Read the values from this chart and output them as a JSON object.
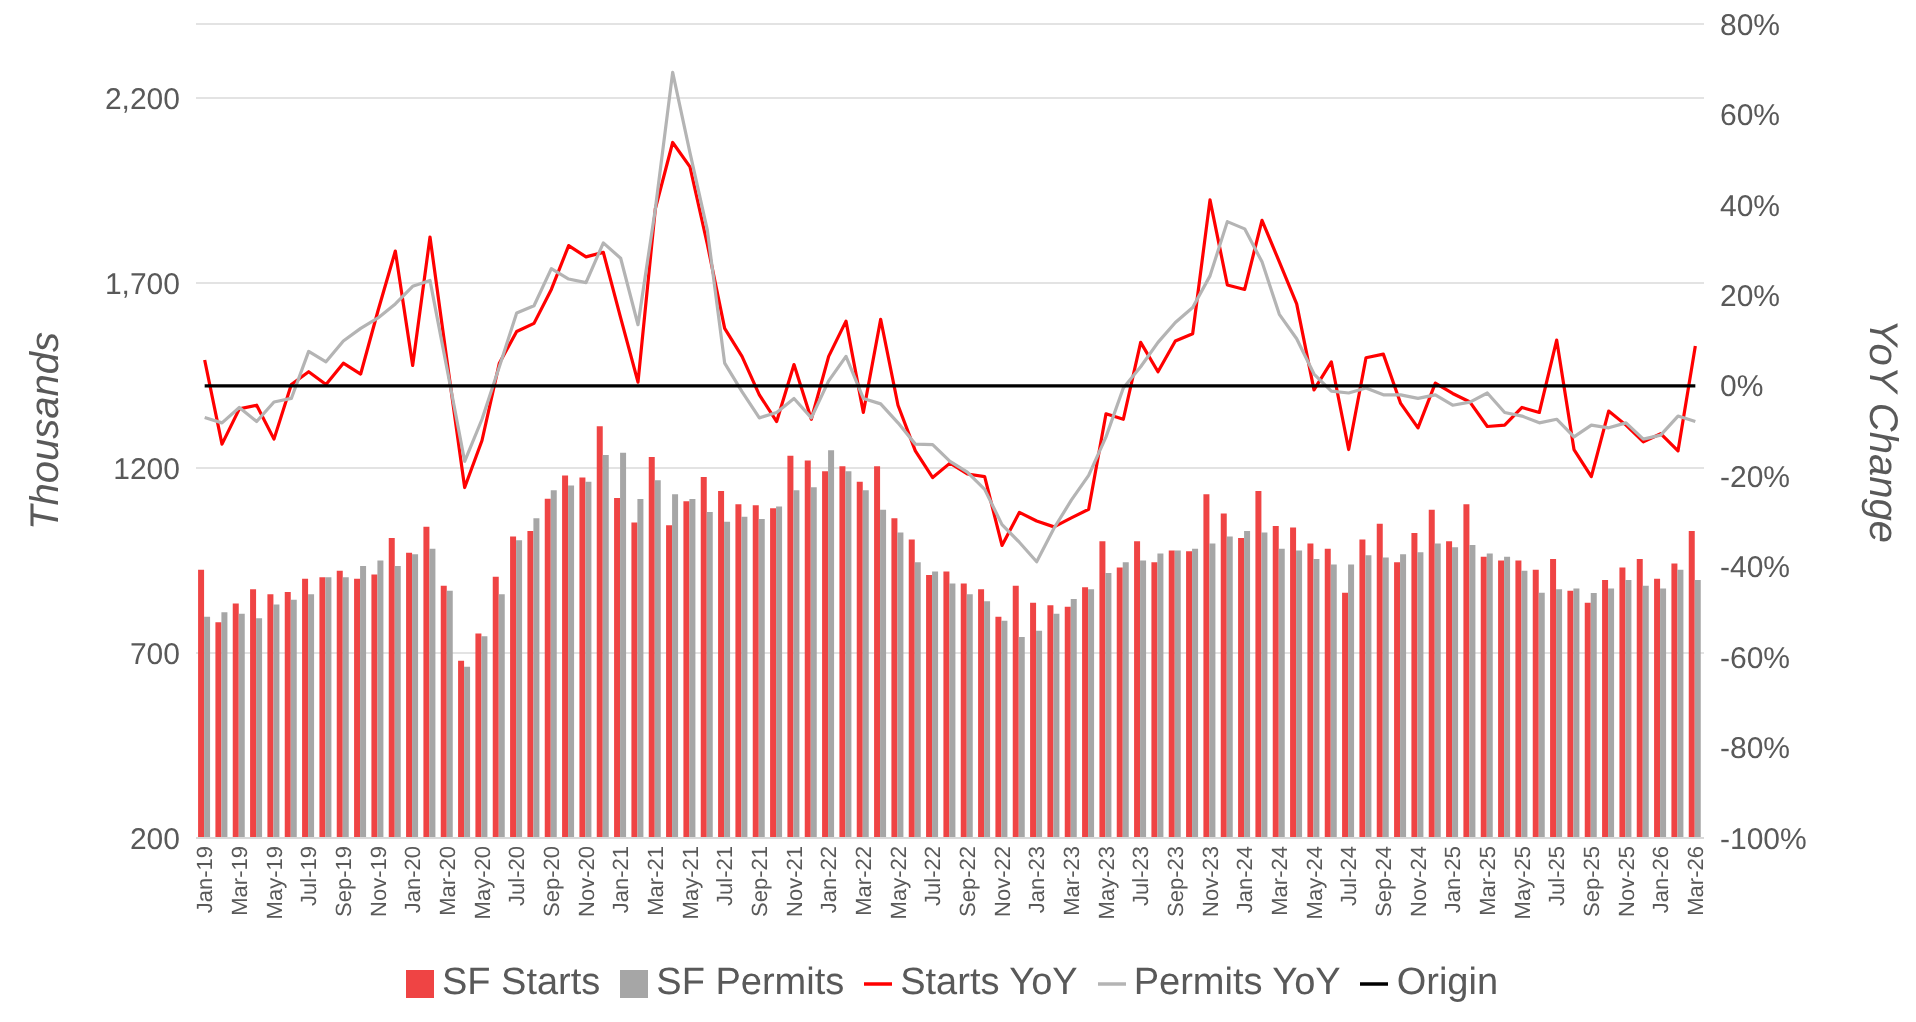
{
  "chart_data": {
    "type": "bar",
    "ylabel": "Thousands",
    "y2label": "YoY Change",
    "categories": [
      "Jan-19",
      null,
      "Mar-19",
      null,
      "May-19",
      null,
      "Jul-19",
      null,
      "Sep-19",
      null,
      "Nov-19",
      null,
      "Jan-20",
      null,
      "Mar-20",
      null,
      "May-20",
      null,
      "Jul-20",
      null,
      "Sep-20",
      null,
      "Nov-20",
      null,
      "Jan-21",
      null,
      "Mar-21",
      null,
      "May-21",
      null,
      "Jul-21",
      null,
      "Sep-21",
      null,
      "Nov-21",
      null,
      "Jan-22",
      null,
      "Mar-22",
      null,
      "May-22",
      null,
      "Jul-22",
      null,
      "Sep-22",
      null,
      "Nov-22",
      null,
      "Jan-23",
      null,
      "Mar-23",
      null,
      "May-23",
      null,
      "Jul-23",
      null,
      "Sep-23",
      null,
      "Nov-23",
      null,
      "Jan-24",
      null,
      "Mar-24",
      null,
      "May-24",
      null,
      "Jul-24",
      null,
      "Sep-24",
      null,
      "Nov-24",
      null,
      "Jan-25",
      null,
      "Mar-25",
      null,
      "May-25",
      null,
      "Jul-25",
      null,
      "Sep-25",
      null,
      "Nov-25",
      null,
      "Jan-26",
      null,
      "Mar-26"
    ],
    "series": [
      {
        "name": "SF Starts",
        "color": "#ef4444",
        "values": [
          925,
          783,
          834,
          872,
          859,
          865,
          901,
          905,
          922,
          901,
          912,
          1011,
          971,
          1041,
          882,
          679,
          753,
          906,
          1015,
          1030,
          1117,
          1180,
          1174,
          1313,
          1119,
          1053,
          1230,
          1045,
          1110,
          1176,
          1138,
          1102,
          1099,
          1091,
          1233,
          1220,
          1191,
          1205,
          1163,
          1205,
          1064,
          1007,
          911,
          920,
          888,
          872,
          798,
          882,
          836,
          829,
          825,
          878,
          1002,
          931,
          1002,
          945,
          977,
          975,
          1129,
          1077,
          1011,
          1138,
          1043,
          1039,
          996,
          982,
          863,
          1007,
          1049,
          945,
          1024,
          1087,
          1002,
          1102,
          960,
          950,
          950,
          925,
          954,
          868,
          836,
          897,
          931,
          954,
          901,
          942,
          1030
        ]
      },
      {
        "name": "SF Permits",
        "color": "#a6a6a6",
        "values": [
          798,
          810,
          806,
          794,
          831,
          844,
          859,
          905,
          905,
          935,
          950,
          935,
          967,
          982,
          868,
          663,
          745,
          859,
          1005,
          1064,
          1140,
          1153,
          1163,
          1235,
          1241,
          1116,
          1167,
          1129,
          1116,
          1081,
          1055,
          1068,
          1062,
          1096,
          1140,
          1148,
          1248,
          1191,
          1140,
          1087,
          1026,
          945,
          920,
          888,
          859,
          840,
          787,
          743,
          760,
          806,
          846,
          872,
          916,
          945,
          950,
          969,
          977,
          982,
          996,
          1015,
          1030,
          1026,
          982,
          977,
          954,
          939,
          939,
          964,
          958,
          967,
          972,
          996,
          986,
          992,
          969,
          960,
          922,
          863,
          872,
          874,
          862,
          874,
          897,
          882,
          874,
          925,
          897
        ]
      },
      {
        "name": "Starts YoY",
        "type": "line",
        "axis": "y2",
        "color": "#ff0000",
        "values": [
          5.7,
          -12.9,
          -5.1,
          -4.3,
          -11.8,
          0.3,
          3.1,
          0.3,
          5.0,
          2.6,
          16.6,
          29.8,
          4.5,
          32.9,
          5.0,
          -22.5,
          -12.1,
          5.0,
          12.0,
          13.8,
          21.3,
          31.0,
          28.5,
          29.5,
          15.0,
          0.8,
          39.1,
          53.8,
          48.4,
          31.3,
          12.7,
          6.5,
          -2.0,
          -7.9,
          4.7,
          -7.4,
          6.5,
          14.3,
          -5.9,
          14.7,
          -4.3,
          -14.4,
          -20.3,
          -17.1,
          -19.5,
          -20.1,
          -35.3,
          -28.0,
          -29.9,
          -31.2,
          -29.2,
          -27.3,
          -6.2,
          -7.4,
          9.6,
          3.1,
          9.9,
          11.5,
          41.1,
          22.3,
          21.3,
          36.6,
          27.4,
          18.1,
          -0.9,
          5.3,
          -14.1,
          6.2,
          7.0,
          -3.9,
          -9.3,
          0.6,
          -1.7,
          -3.6,
          -9.0,
          -8.7,
          -4.8,
          -5.9,
          10.1,
          -14.1,
          -20.1,
          -5.6,
          -8.7,
          -12.4,
          -10.6,
          -14.4,
          8.8
        ]
      },
      {
        "name": "Permits YoY",
        "type": "line",
        "axis": "y2",
        "color": "#b4b4b4",
        "values": [
          -7.0,
          -8.2,
          -4.8,
          -7.9,
          -3.6,
          -2.8,
          7.6,
          5.3,
          9.9,
          12.7,
          15.0,
          18.1,
          22.0,
          23.3,
          3.4,
          -16.7,
          -7.4,
          4.2,
          16.1,
          17.7,
          25.9,
          23.6,
          22.8,
          31.6,
          28.2,
          13.5,
          39.1,
          69.3,
          51.5,
          34.4,
          5.0,
          -1.3,
          -7.1,
          -5.9,
          -2.8,
          -7.1,
          1.1,
          6.5,
          -2.8,
          -4.0,
          -8.2,
          -12.9,
          -13.0,
          -16.7,
          -19.1,
          -22.9,
          -30.7,
          -34.6,
          -38.9,
          -31.5,
          -25.3,
          -19.8,
          -11.3,
          -0.5,
          4.2,
          9.6,
          14.0,
          17.3,
          24.3,
          36.3,
          34.7,
          27.4,
          15.8,
          10.4,
          2.6,
          -1.2,
          -1.6,
          -0.5,
          -2.0,
          -2.0,
          -2.8,
          -2.0,
          -4.3,
          -3.6,
          -1.6,
          -5.9,
          -6.7,
          -8.2,
          -7.4,
          -11.3,
          -8.7,
          -9.3,
          -8.2,
          -11.8,
          -10.9,
          -6.7,
          -7.9
        ]
      },
      {
        "name": "Origin",
        "type": "line",
        "axis": "y2",
        "color": "#000000",
        "values": [
          0,
          0,
          0,
          0,
          0,
          0,
          0,
          0,
          0,
          0,
          0,
          0,
          0,
          0,
          0,
          0,
          0,
          0,
          0,
          0,
          0,
          0,
          0,
          0,
          0,
          0,
          0,
          0,
          0,
          0,
          0,
          0,
          0,
          0,
          0,
          0,
          0,
          0,
          0,
          0,
          0,
          0,
          0,
          0,
          0,
          0,
          0,
          0,
          0,
          0,
          0,
          0,
          0,
          0,
          0,
          0,
          0,
          0,
          0,
          0,
          0,
          0,
          0,
          0,
          0,
          0,
          0,
          0,
          0,
          0,
          0,
          0,
          0,
          0,
          0,
          0,
          0,
          0,
          0,
          0,
          0,
          0,
          0,
          0,
          0,
          0,
          0
        ]
      }
    ],
    "ylim": [
      200,
      2400
    ],
    "yticks": [
      200,
      700,
      1200,
      {
        "value": 1700,
        "label": "1,700"
      },
      {
        "value": 2200,
        "label": "2,200"
      }
    ],
    "y2lim": [
      -100,
      80
    ],
    "y2ticks": [
      {
        "value": -100,
        "label": "-100%"
      },
      {
        "value": -80,
        "label": "-80%"
      },
      {
        "value": -60,
        "label": "-60%"
      },
      {
        "value": -40,
        "label": "-40%"
      },
      {
        "value": -20,
        "label": "-20%"
      },
      {
        "value": 0,
        "label": "0%"
      },
      {
        "value": 20,
        "label": "20%"
      },
      {
        "value": 40,
        "label": "40%"
      },
      {
        "value": 60,
        "label": "60%"
      },
      {
        "value": 80,
        "label": "80%"
      }
    ],
    "grid": "y",
    "legend": "bottom"
  }
}
